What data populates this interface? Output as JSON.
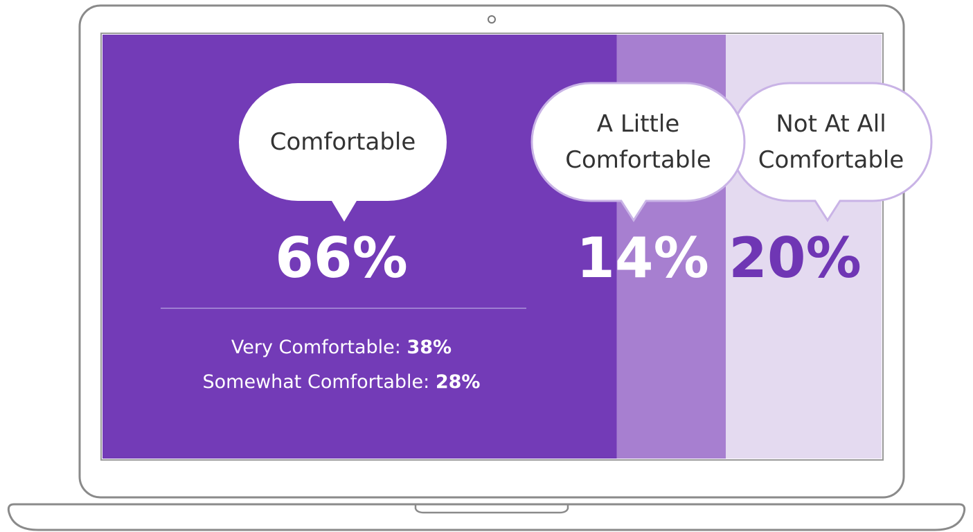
{
  "chart_data": {
    "type": "stacked-bar",
    "series": [
      {
        "name": "Comfortable",
        "color": "#733bb7",
        "values": [
          66
        ],
        "value_labels": [
          "66%"
        ],
        "label_color": "#ffffff"
      },
      {
        "name": "A Little Comfortable",
        "color": "#a77fd0",
        "values": [
          14
        ],
        "value_labels": [
          "14%"
        ],
        "label_color": "#ffffff"
      },
      {
        "name": "Not At All Comfortable",
        "color": "#e4daf0",
        "values": [
          20
        ],
        "value_labels": [
          "20%"
        ],
        "label_color": "#6f36b4"
      }
    ],
    "breakdown": [
      {
        "name": "Very Comfortable:",
        "values": [
          38
        ],
        "value_labels": [
          "38%"
        ]
      },
      {
        "name": "Somewhat Comfortable:",
        "values": [
          28
        ],
        "value_labels": [
          "28%"
        ]
      }
    ]
  }
}
